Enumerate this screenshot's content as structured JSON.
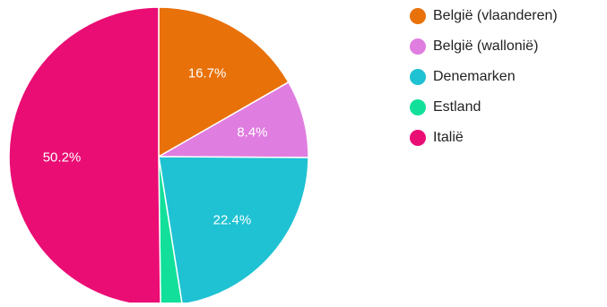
{
  "chart_data": {
    "type": "pie",
    "categories": [
      "België (vlaanderen)",
      "België (wallonië)",
      "Denemarken",
      "Estland",
      "Italië"
    ],
    "values": [
      16.7,
      8.4,
      22.4,
      2.3,
      50.2
    ],
    "data_labels": [
      "16.7%",
      "8.4%",
      "22.4%",
      "",
      "50.2%"
    ],
    "colors": [
      "#e8710a",
      "#df7ee0",
      "#1fc2d3",
      "#12e09a",
      "#ea0d74"
    ],
    "start_angle_deg": 0,
    "direction": "clockwise",
    "legend_position": "right"
  }
}
